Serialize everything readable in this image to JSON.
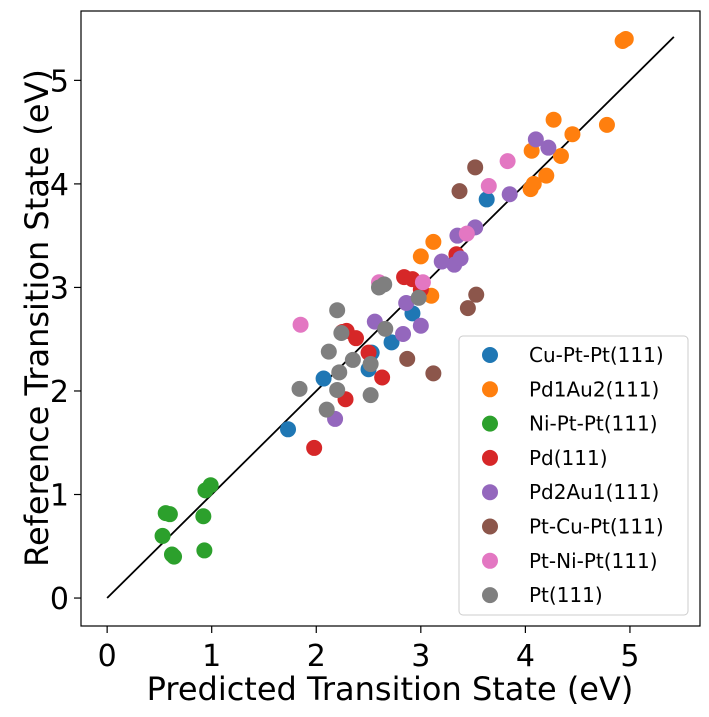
{
  "chart_data": {
    "type": "scatter",
    "title": "",
    "xlabel": "Predicted Transition State (eV)",
    "ylabel": "Reference Transition State (eV)",
    "xlim": [
      -0.25,
      5.67
    ],
    "ylim": [
      -0.27,
      5.67
    ],
    "xticks": [
      0,
      1,
      2,
      3,
      4,
      5
    ],
    "yticks": [
      0,
      1,
      2,
      3,
      4,
      5
    ],
    "legend_position": "lower-right",
    "parity_line": {
      "x": [
        0,
        5.42
      ],
      "y": [
        0,
        5.42
      ],
      "color": "#000000"
    },
    "series": [
      {
        "name": "Cu-Pt-Pt(111)",
        "color": "#1f77b4",
        "points": [
          [
            1.73,
            1.63
          ],
          [
            2.07,
            2.12
          ],
          [
            2.72,
            2.47
          ],
          [
            2.53,
            2.37
          ],
          [
            2.92,
            2.75
          ],
          [
            2.5,
            2.21
          ],
          [
            3.63,
            3.85
          ]
        ]
      },
      {
        "name": "Pd1Au2(111)",
        "color": "#ff7f0e",
        "points": [
          [
            4.93,
            5.38
          ],
          [
            4.96,
            5.4
          ],
          [
            4.27,
            4.62
          ],
          [
            4.45,
            4.48
          ],
          [
            4.78,
            4.57
          ],
          [
            4.34,
            4.27
          ],
          [
            4.06,
            4.32
          ],
          [
            4.2,
            4.08
          ],
          [
            4.05,
            3.95
          ],
          [
            4.08,
            4.0
          ],
          [
            3.12,
            3.44
          ],
          [
            3.0,
            3.3
          ],
          [
            3.1,
            2.92
          ]
        ]
      },
      {
        "name": "Ni-Pt-Pt(111)",
        "color": "#2ca02c",
        "points": [
          [
            0.56,
            0.82
          ],
          [
            0.6,
            0.81
          ],
          [
            0.53,
            0.6
          ],
          [
            0.94,
            1.04
          ],
          [
            0.99,
            1.09
          ],
          [
            0.92,
            0.79
          ],
          [
            0.93,
            0.46
          ],
          [
            0.62,
            0.42
          ],
          [
            0.64,
            0.4
          ]
        ]
      },
      {
        "name": "Pd(111)",
        "color": "#d62728",
        "points": [
          [
            1.98,
            1.45
          ],
          [
            2.28,
            1.92
          ],
          [
            2.63,
            2.13
          ],
          [
            2.38,
            2.51
          ],
          [
            2.25,
            2.57
          ],
          [
            2.29,
            2.58
          ],
          [
            2.5,
            2.37
          ],
          [
            2.84,
            3.1
          ],
          [
            2.92,
            3.08
          ],
          [
            3.34,
            3.32
          ],
          [
            3.0,
            2.98
          ]
        ]
      },
      {
        "name": "Pd2Au1(111)",
        "color": "#9467bd",
        "points": [
          [
            2.18,
            1.73
          ],
          [
            2.83,
            2.55
          ],
          [
            3.0,
            2.63
          ],
          [
            2.56,
            2.67
          ],
          [
            2.86,
            2.85
          ],
          [
            3.2,
            3.25
          ],
          [
            3.32,
            3.22
          ],
          [
            3.38,
            3.28
          ],
          [
            3.35,
            3.5
          ],
          [
            3.52,
            3.58
          ],
          [
            3.85,
            3.9
          ],
          [
            4.1,
            4.43
          ],
          [
            4.22,
            4.35
          ]
        ]
      },
      {
        "name": "Pt-Cu-Pt(111)",
        "color": "#8c564b",
        "points": [
          [
            2.87,
            2.31
          ],
          [
            3.12,
            2.17
          ],
          [
            3.53,
            2.93
          ],
          [
            3.45,
            2.8
          ],
          [
            3.37,
            3.93
          ],
          [
            3.52,
            4.16
          ]
        ]
      },
      {
        "name": "Pt-Ni-Pt(111)",
        "color": "#e377c2",
        "points": [
          [
            1.85,
            2.64
          ],
          [
            2.6,
            3.05
          ],
          [
            3.02,
            3.05
          ],
          [
            3.44,
            3.52
          ],
          [
            3.65,
            3.98
          ],
          [
            3.83,
            4.22
          ]
        ]
      },
      {
        "name": "Pt(111)",
        "color": "#7f7f7f",
        "points": [
          [
            1.84,
            2.02
          ],
          [
            2.1,
            1.82
          ],
          [
            2.2,
            2.01
          ],
          [
            2.22,
            2.18
          ],
          [
            2.12,
            2.38
          ],
          [
            2.24,
            2.56
          ],
          [
            2.35,
            2.3
          ],
          [
            2.52,
            2.26
          ],
          [
            2.52,
            1.96
          ],
          [
            2.66,
            2.6
          ],
          [
            2.2,
            2.78
          ],
          [
            2.6,
            3.0
          ],
          [
            2.65,
            3.03
          ],
          [
            2.98,
            2.9
          ]
        ]
      }
    ]
  }
}
